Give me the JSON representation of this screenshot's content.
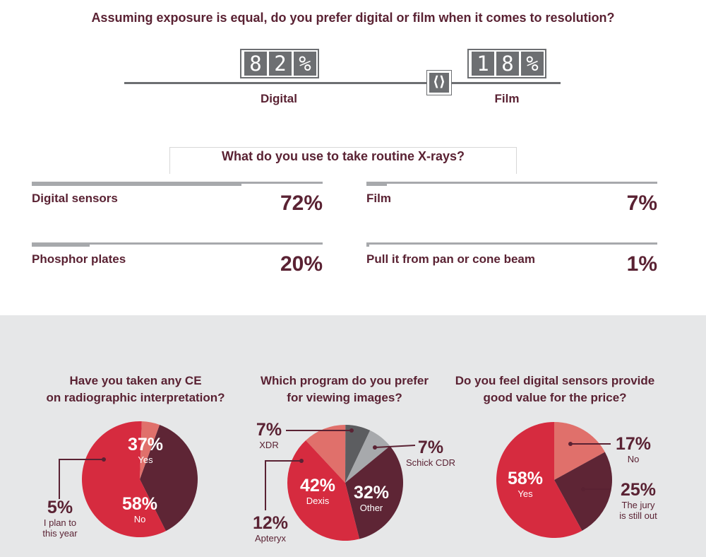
{
  "colors": {
    "maroon": "#5a2233",
    "red": "#d62b3f",
    "dark_maroon": "#5e2535",
    "salmon": "#e0706b",
    "dark_gray": "#5c5d60",
    "light_gray": "#a7a9ac",
    "panel_gray": "#e6e7e8"
  },
  "q1": {
    "title": "Assuming exposure is equal, do you prefer digital or film when it comes to resolution?",
    "digital": {
      "digits": [
        "8",
        "2",
        "%"
      ],
      "label": "Digital"
    },
    "film": {
      "digits": [
        "1",
        "8",
        "%"
      ],
      "label": "Film"
    },
    "handle_icon": "slider-handle-icon"
  },
  "q2": {
    "title": "What do you use to take routine X-rays?",
    "items": [
      {
        "label": "Digital sensors",
        "value": "72%"
      },
      {
        "label": "Film",
        "value": "7%"
      },
      {
        "label": "Phosphor plates",
        "value": "20%"
      },
      {
        "label": "Pull it from pan or cone beam",
        "value": "1%"
      }
    ]
  },
  "pies": {
    "ce": {
      "title_line1": "Have you taken any CE",
      "title_line2": "on radiographic interpretation?",
      "slices": [
        {
          "pct": "37%",
          "label": "Yes"
        },
        {
          "pct": "58%",
          "label": "No"
        },
        {
          "pct": "5%",
          "label_line1": "I plan to",
          "label_line2": "this year"
        }
      ]
    },
    "program": {
      "title_line1": "Which program do you prefer",
      "title_line2": "for viewing images?",
      "slices": [
        {
          "pct": "7%",
          "label": "XDR"
        },
        {
          "pct": "7%",
          "label": "Schick CDR"
        },
        {
          "pct": "42%",
          "label": "Dexis"
        },
        {
          "pct": "32%",
          "label": "Other"
        },
        {
          "pct": "12%",
          "label": "Apteryx"
        }
      ]
    },
    "value": {
      "title_line1": "Do you feel digital sensors provide",
      "title_line2": "good value for the price?",
      "slices": [
        {
          "pct": "17%",
          "label": "No"
        },
        {
          "pct": "58%",
          "label": "Yes"
        },
        {
          "pct": "25%",
          "label_line1": "The jury",
          "label_line2": "is still out"
        }
      ]
    }
  },
  "chart_data": [
    {
      "type": "bar",
      "title": "Assuming exposure is equal, do you prefer digital or film when it comes to resolution?",
      "categories": [
        "Digital",
        "Film"
      ],
      "values": [
        82,
        18
      ]
    },
    {
      "type": "bar",
      "title": "What do you use to take routine X-rays?",
      "categories": [
        "Digital sensors",
        "Film",
        "Phosphor plates",
        "Pull it from pan or cone beam"
      ],
      "values": [
        72,
        7,
        20,
        1
      ]
    },
    {
      "type": "pie",
      "title": "Have you taken any CE on radiographic interpretation?",
      "categories": [
        "Yes",
        "No",
        "I plan to this year"
      ],
      "values": [
        37,
        58,
        5
      ],
      "colors": [
        "#5e2535",
        "#d62b3f",
        "#e0706b"
      ]
    },
    {
      "type": "pie",
      "title": "Which program do you prefer for viewing images?",
      "categories": [
        "Apteryx",
        "XDR",
        "Schick CDR",
        "Other",
        "Dexis"
      ],
      "values": [
        12,
        7,
        7,
        32,
        42
      ],
      "colors": [
        "#e0706b",
        "#5c5d60",
        "#a7a9ac",
        "#5e2535",
        "#d62b3f"
      ]
    },
    {
      "type": "pie",
      "title": "Do you feel digital sensors provide good value for the price?",
      "categories": [
        "No",
        "The jury is still out",
        "Yes"
      ],
      "values": [
        17,
        25,
        58
      ],
      "colors": [
        "#e0706b",
        "#5e2535",
        "#d62b3f"
      ]
    }
  ]
}
